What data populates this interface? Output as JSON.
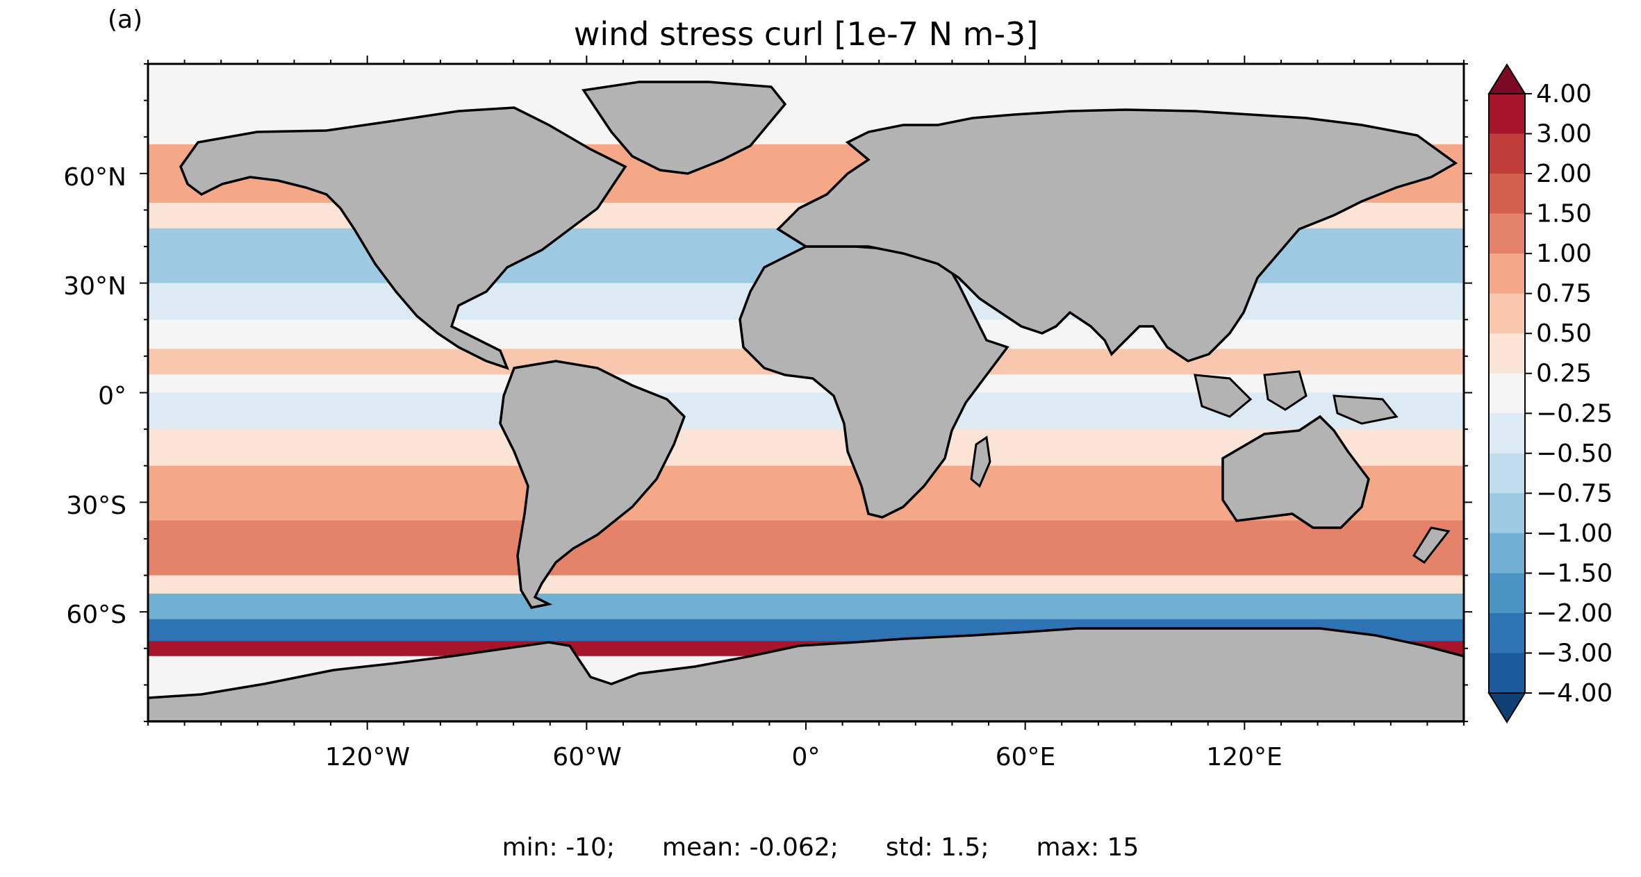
{
  "panel_label": "(a)",
  "chart_data": {
    "type": "heatmap",
    "title": "wind stress curl [1e-7 N m-3]",
    "projection": "PlateCarree (global map)",
    "x_ticks": [
      "120°W",
      "60°W",
      "0°",
      "60°E",
      "120°E"
    ],
    "x_tick_values": [
      -120,
      -60,
      0,
      60,
      120
    ],
    "y_ticks": [
      "60°N",
      "30°N",
      "0°",
      "30°S",
      "60°S"
    ],
    "y_tick_values": [
      60,
      30,
      0,
      -30,
      -60
    ],
    "xlim": [
      -180,
      180
    ],
    "ylim": [
      -90,
      90
    ],
    "land_color": "#b3b3b3",
    "coastline_color": "#000000",
    "colorbar": {
      "extend": "both",
      "levels": [
        "4.00",
        "3.00",
        "2.00",
        "1.50",
        "1.00",
        "0.75",
        "0.50",
        "0.25",
        "−0.25",
        "−0.50",
        "−0.75",
        "−1.00",
        "−1.50",
        "−2.00",
        "−3.00",
        "−4.00"
      ],
      "colors": [
        "#7d0a25",
        "#a5162b",
        "#bf3d3b",
        "#d3604e",
        "#e5836a",
        "#f4a888",
        "#f9c7ad",
        "#fbe3d6",
        "#f5f5f5",
        "#dceaf3",
        "#c1dced",
        "#9dcae2",
        "#72b0d3",
        "#4a93c3",
        "#2e74b4",
        "#1b5a9d",
        "#0f3f73"
      ]
    },
    "stats": {
      "min": "min: -10;",
      "mean": "mean: -0.062;",
      "std": "std: 1.5;",
      "max": "max: 15"
    },
    "bands": [
      {
        "lat_from": 90,
        "lat_to": 68,
        "level": 0.1
      },
      {
        "lat_from": 68,
        "lat_to": 52,
        "level": 0.9
      },
      {
        "lat_from": 52,
        "lat_to": 45,
        "level": 0.4
      },
      {
        "lat_from": 45,
        "lat_to": 30,
        "level": -0.9
      },
      {
        "lat_from": 30,
        "lat_to": 20,
        "level": -0.4
      },
      {
        "lat_from": 20,
        "lat_to": 12,
        "level": 0.2
      },
      {
        "lat_from": 12,
        "lat_to": 5,
        "level": 0.6
      },
      {
        "lat_from": 5,
        "lat_to": 0,
        "level": 0.1
      },
      {
        "lat_from": 0,
        "lat_to": -10,
        "level": -0.5
      },
      {
        "lat_from": -10,
        "lat_to": -20,
        "level": 0.3
      },
      {
        "lat_from": -20,
        "lat_to": -35,
        "level": 0.8
      },
      {
        "lat_from": -35,
        "lat_to": -50,
        "level": 1.2
      },
      {
        "lat_from": -50,
        "lat_to": -55,
        "level": 0.3
      },
      {
        "lat_from": -55,
        "lat_to": -62,
        "level": -1.2
      },
      {
        "lat_from": -62,
        "lat_to": -68,
        "level": -2.5
      },
      {
        "lat_from": -68,
        "lat_to": -72,
        "level": 3.5
      }
    ]
  }
}
